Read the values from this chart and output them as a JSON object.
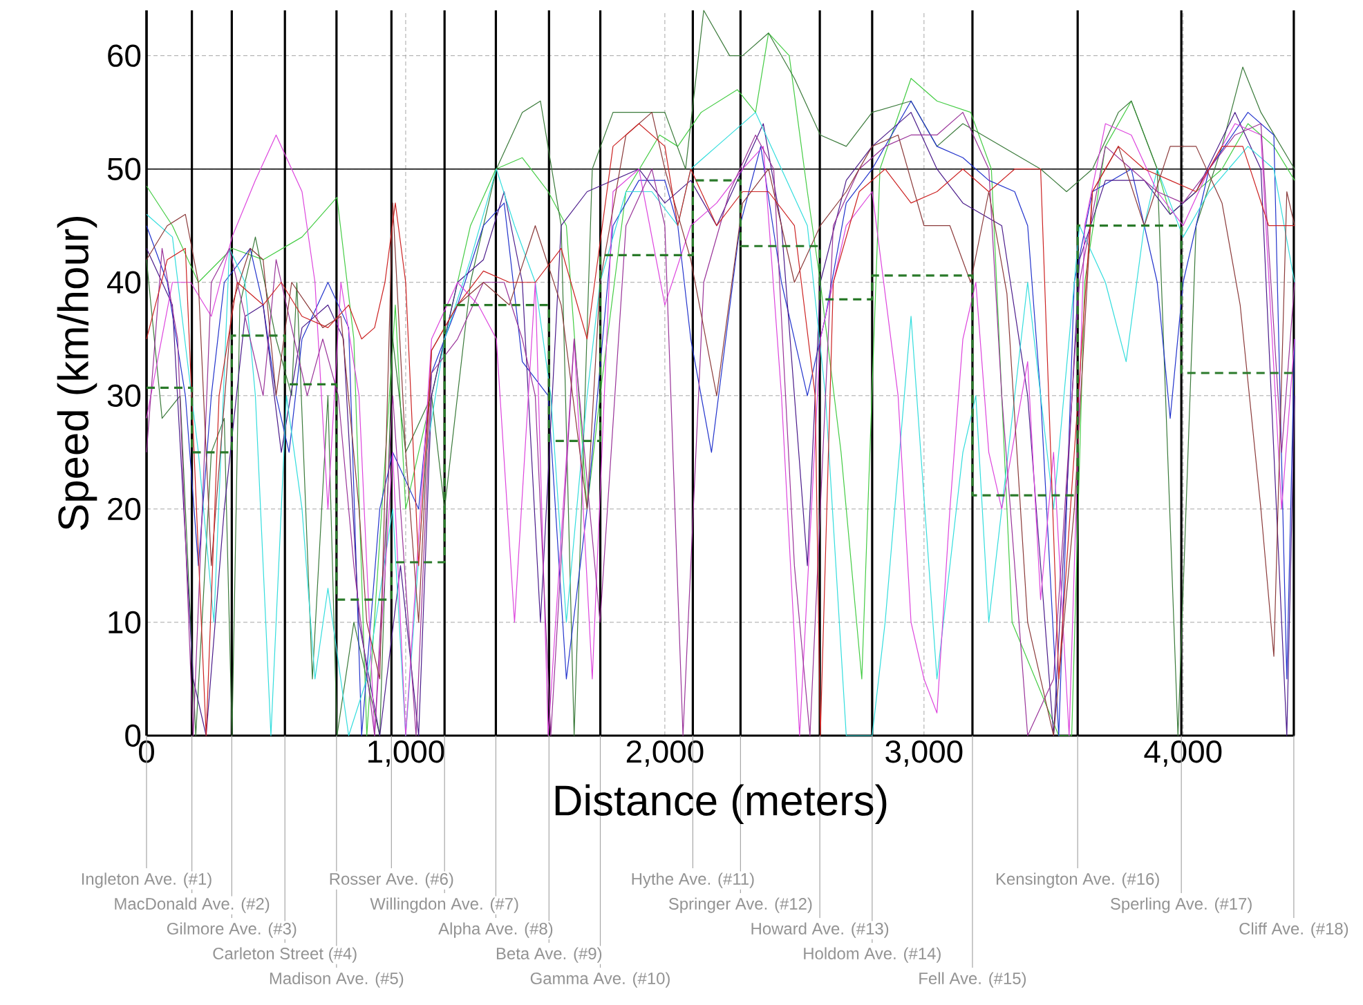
{
  "chart_data": {
    "type": "line",
    "xlabel": "Distance (meters)",
    "ylabel": "Speed (km/hour)",
    "xlim": [
      0,
      4430
    ],
    "ylim": [
      0,
      64
    ],
    "xticks": [
      0,
      {
        "value": 1000,
        "label": "1,000"
      },
      {
        "value": 2000,
        "label": "2,000"
      },
      {
        "value": 3000,
        "label": "3,000"
      },
      {
        "value": 4000,
        "label": "4,000"
      }
    ],
    "yticks": [
      0,
      10,
      20,
      30,
      40,
      50,
      60
    ],
    "grid": true,
    "marker": "none",
    "line_style": "solid",
    "series": [
      {
        "color": "#44cc44",
        "x": [
          0,
          100,
          200,
          330,
          450,
          600,
          735,
          800,
          850,
          960,
          1000,
          1150,
          1250,
          1348,
          1450,
          1550,
          1620,
          1700,
          1750,
          1850,
          1980,
          2050,
          2140,
          2280,
          2350,
          2400,
          2480,
          2550,
          2600,
          2680,
          2760,
          2830,
          2950,
          3050,
          3180,
          3260,
          3340,
          3520,
          3570,
          3620,
          3700,
          3800,
          3900,
          3950,
          4000,
          4150,
          4250,
          4350,
          4430
        ],
        "values": [
          48.5,
          45,
          40,
          43,
          42,
          44,
          47.5,
          35,
          0,
          38,
          20,
          35,
          45,
          50,
          51,
          48,
          45,
          20,
          30,
          48,
          53,
          52,
          55,
          57,
          55,
          62,
          60,
          48,
          40,
          25,
          5,
          50,
          58,
          56,
          55,
          50,
          10,
          0,
          0,
          40,
          52,
          56,
          50,
          46,
          47,
          50,
          54,
          52,
          49
        ]
      },
      {
        "color": "#3a7a3a",
        "x": [
          0,
          60,
          130,
          190,
          250,
          300,
          330,
          360,
          420,
          500,
          560,
          580,
          640,
          700,
          735,
          800,
          900,
          950,
          1000,
          1100,
          1150,
          1250,
          1350,
          1450,
          1520,
          1600,
          1650,
          1720,
          1800,
          1900,
          2000,
          2080,
          2150,
          2250,
          2300,
          2400,
          2500,
          2600,
          2700,
          2800,
          2950,
          3050,
          3150,
          3300,
          3450,
          3550,
          3650,
          3750,
          3800,
          3900,
          3980,
          4050,
          4150,
          4230,
          4300,
          4430
        ],
        "values": [
          42,
          28,
          30,
          0,
          25,
          28,
          0,
          38,
          44,
          35,
          30,
          40,
          5,
          30,
          0,
          10,
          0,
          35,
          25,
          30,
          20,
          40,
          50,
          55,
          56,
          45,
          0,
          50,
          55,
          55,
          55,
          50,
          64,
          60,
          60,
          62,
          58,
          53,
          52,
          55,
          56,
          52,
          54,
          52,
          50,
          48,
          50,
          55,
          56,
          50,
          0,
          45,
          52,
          59,
          55,
          50
        ]
      },
      {
        "color": "#2233cc",
        "x": [
          0,
          80,
          150,
          200,
          250,
          300,
          400,
          450,
          500,
          550,
          600,
          700,
          780,
          830,
          900,
          950,
          1050,
          1100,
          1200,
          1300,
          1380,
          1450,
          1550,
          1620,
          1700,
          1800,
          1900,
          2000,
          2050,
          2100,
          2180,
          2290,
          2370,
          2450,
          2550,
          2620,
          2700,
          2800,
          2950,
          3050,
          3150,
          3250,
          3350,
          3400,
          3450,
          3520,
          3580,
          3650,
          3800,
          3900,
          3950,
          4000,
          4100,
          4250,
          4350,
          4400,
          4430
        ],
        "values": [
          45,
          40,
          30,
          15,
          30,
          40,
          43,
          38,
          30,
          25,
          35,
          40,
          36,
          0,
          20,
          25,
          20,
          32,
          38,
          45,
          47,
          33,
          30,
          5,
          20,
          45,
          49,
          49,
          45,
          35,
          25,
          45,
          52,
          40,
          30,
          37,
          47,
          50,
          56,
          52,
          51,
          49,
          48,
          45,
          30,
          0,
          40,
          48,
          50,
          40,
          28,
          40,
          50,
          55,
          53,
          5,
          35
        ]
      },
      {
        "color": "#4a1a8a",
        "x": [
          0,
          100,
          180,
          230,
          300,
          380,
          450,
          520,
          600,
          700,
          760,
          820,
          900,
          980,
          1050,
          1100,
          1200,
          1300,
          1380,
          1450,
          1520,
          1600,
          1700,
          1800,
          1900,
          2000,
          2100,
          2200,
          2300,
          2380,
          2450,
          2550,
          2600,
          2700,
          2800,
          2950,
          3050,
          3150,
          3300,
          3400,
          3500,
          3600,
          3700,
          3850,
          3950,
          4050,
          4200,
          4300,
          4400,
          4430
        ],
        "values": [
          43,
          38,
          5,
          0,
          20,
          37,
          38,
          25,
          36,
          38,
          35,
          10,
          0,
          15,
          0,
          30,
          40,
          42,
          48,
          40,
          10,
          45,
          48,
          49,
          50,
          47,
          49,
          45,
          50,
          54,
          45,
          15,
          40,
          49,
          52,
          55,
          50,
          47,
          45,
          30,
          0,
          42,
          49,
          49,
          46,
          48,
          55,
          50,
          0,
          30
        ]
      },
      {
        "color": "#33dddd",
        "x": [
          0,
          100,
          200,
          260,
          320,
          380,
          420,
          480,
          540,
          600,
          650,
          700,
          780,
          850,
          950,
          1000,
          1080,
          1150,
          1250,
          1350,
          1420,
          1500,
          1560,
          1620,
          1700,
          1750,
          1850,
          1950,
          2050,
          2100,
          2200,
          2350,
          2450,
          2550,
          2620,
          2700,
          2800,
          2850,
          2950,
          3050,
          3150,
          3200,
          3250,
          3300,
          3400,
          3500,
          3600,
          3700,
          3780,
          3850,
          3900,
          4000,
          4100,
          4250,
          4350,
          4430
        ],
        "values": [
          46,
          44,
          25,
          10,
          43,
          40,
          30,
          0,
          30,
          20,
          5,
          13,
          0,
          5,
          20,
          0,
          25,
          35,
          42,
          50,
          45,
          40,
          30,
          10,
          30,
          40,
          48,
          48,
          45,
          50,
          52,
          55,
          50,
          45,
          30,
          0,
          0,
          10,
          37,
          5,
          25,
          30,
          10,
          20,
          40,
          20,
          45,
          40,
          33,
          45,
          50,
          44,
          48,
          52,
          50,
          40
        ]
      },
      {
        "color": "#dd44dd",
        "x": [
          0,
          100,
          170,
          250,
          330,
          420,
          500,
          600,
          650,
          700,
          750,
          820,
          880,
          950,
          1000,
          1100,
          1200,
          1280,
          1350,
          1420,
          1500,
          1550,
          1650,
          1720,
          1800,
          1900,
          2000,
          2100,
          2200,
          2300,
          2380,
          2450,
          2520,
          2600,
          2700,
          2800,
          2900,
          2950,
          3000,
          3050,
          3100,
          3150,
          3200,
          3250,
          3300,
          3400,
          3450,
          3500,
          3560,
          3620,
          3700,
          3800,
          3900,
          4000,
          4100,
          4200,
          4300,
          4380,
          4430
        ],
        "values": [
          28,
          40,
          40,
          37,
          44,
          49,
          53,
          48,
          40,
          20,
          40,
          30,
          0,
          25,
          0,
          35,
          40,
          38,
          35,
          10,
          40,
          0,
          35,
          5,
          48,
          50,
          38,
          45,
          47,
          50,
          52,
          30,
          0,
          35,
          45,
          48,
          30,
          10,
          5,
          2,
          20,
          35,
          40,
          25,
          20,
          33,
          12,
          25,
          0,
          45,
          54,
          53,
          48,
          45,
          50,
          54,
          53,
          20,
          35
        ]
      },
      {
        "color": "#993399",
        "x": [
          0,
          60,
          120,
          180,
          250,
          320,
          400,
          450,
          500,
          560,
          620,
          680,
          740,
          800,
          880,
          950,
          1040,
          1100,
          1200,
          1300,
          1380,
          1450,
          1500,
          1560,
          1650,
          1750,
          1850,
          1950,
          2000,
          2070,
          2150,
          2250,
          2350,
          2420,
          2500,
          2560,
          2650,
          2750,
          2850,
          2950,
          3050,
          3150,
          3250,
          3300,
          3400,
          3500,
          3600,
          3700,
          3800,
          3900,
          4000,
          4100,
          4200,
          4300,
          4380,
          4430
        ],
        "values": [
          25,
          43,
          35,
          0,
          40,
          43,
          35,
          30,
          42,
          36,
          30,
          35,
          30,
          15,
          0,
          30,
          0,
          32,
          35,
          40,
          40,
          35,
          30,
          0,
          35,
          10,
          45,
          50,
          45,
          0,
          40,
          48,
          53,
          50,
          15,
          0,
          45,
          50,
          52,
          53,
          53,
          55,
          50,
          30,
          0,
          5,
          40,
          52,
          50,
          48,
          47,
          50,
          53,
          54,
          25,
          40
        ]
      },
      {
        "color": "#8b3a3a",
        "x": [
          0,
          80,
          150,
          200,
          250,
          330,
          400,
          450,
          500,
          560,
          620,
          680,
          750,
          820,
          850,
          900,
          950,
          1000,
          1050,
          1100,
          1200,
          1300,
          1400,
          1500,
          1600,
          1700,
          1750,
          1850,
          1950,
          2000,
          2100,
          2200,
          2300,
          2400,
          2500,
          2600,
          2700,
          2800,
          2900,
          3000,
          3100,
          3180,
          3250,
          3320,
          3400,
          3500,
          3580,
          3650,
          3750,
          3850,
          3950,
          4050,
          4150,
          4220,
          4300,
          4350,
          4400,
          4430
        ],
        "values": [
          42,
          45,
          46,
          40,
          15,
          38,
          43,
          42,
          30,
          40,
          38,
          36,
          37,
          20,
          10,
          5,
          47,
          25,
          10,
          34,
          38,
          40,
          38,
          45,
          38,
          20,
          40,
          53,
          55,
          50,
          42,
          30,
          47,
          50,
          40,
          45,
          48,
          52,
          53,
          45,
          45,
          40,
          48,
          39,
          10,
          0,
          20,
          48,
          52,
          45,
          52,
          52,
          47,
          38,
          20,
          7,
          48,
          45
        ]
      },
      {
        "color": "#cc2222",
        "x": [
          0,
          80,
          150,
          230,
          280,
          350,
          450,
          520,
          600,
          700,
          780,
          830,
          880,
          920,
          960,
          1000,
          1050,
          1100,
          1200,
          1300,
          1400,
          1500,
          1600,
          1700,
          1800,
          1900,
          2000,
          2050,
          2100,
          2200,
          2300,
          2400,
          2500,
          2580,
          2600,
          2650,
          2750,
          2850,
          2950,
          3050,
          3150,
          3250,
          3350,
          3450,
          3520,
          3580,
          3650,
          3750,
          3850,
          3950,
          4050,
          4150,
          4230,
          4330,
          4430
        ],
        "values": [
          35,
          42,
          43,
          0,
          30,
          40,
          38,
          40,
          37,
          36,
          38,
          35,
          36,
          40,
          47,
          40,
          15,
          34,
          38,
          41,
          40,
          40,
          43,
          35,
          52,
          54,
          52,
          45,
          50,
          45,
          48,
          48,
          45,
          30,
          0,
          40,
          48,
          50,
          47,
          48,
          50,
          48,
          50,
          50,
          5,
          25,
          48,
          52,
          50,
          49,
          48,
          52,
          52,
          45,
          45
        ]
      },
      {
        "type": "step",
        "color": "#2a7a2a",
        "line_style": "dashed",
        "x": [
          0,
          175,
          329,
          534,
          733,
          945,
          1150,
          1348,
          1553,
          1751,
          2108,
          2292,
          2598,
          2800,
          3187,
          3593,
          3993,
          4427
        ],
        "values": [
          30.7,
          25,
          35.3,
          31,
          12,
          15.3,
          38,
          38,
          26,
          42.4,
          49,
          43.2,
          38.5,
          40.6,
          21.2,
          45,
          32,
          32
        ]
      }
    ],
    "ref_lines": [
      {
        "axis": "y",
        "value": 50,
        "color": "#000000"
      },
      {
        "axis": "x",
        "value": 0,
        "label": "Ingleton Ave. (#1)",
        "color": "#000000"
      },
      {
        "axis": "x",
        "value": 175,
        "label": "MacDonald Ave. (#2)",
        "color": "#000000"
      },
      {
        "axis": "x",
        "value": 329,
        "label": "Gilmore Ave. (#3)",
        "color": "#000000"
      },
      {
        "axis": "x",
        "value": 534,
        "label": "Carleton Street (#4)",
        "color": "#000000"
      },
      {
        "axis": "x",
        "value": 733,
        "label": "Madison Ave. (#5)",
        "color": "#000000"
      },
      {
        "axis": "x",
        "value": 945,
        "label": "Rosser Ave. (#6)",
        "color": "#000000"
      },
      {
        "axis": "x",
        "value": 1150,
        "label": "Willingdon Ave. (#7)",
        "color": "#000000"
      },
      {
        "axis": "x",
        "value": 1348,
        "label": "Alpha Ave. (#8)",
        "color": "#000000"
      },
      {
        "axis": "x",
        "value": 1553,
        "label": "Beta Ave. (#9)",
        "color": "#000000"
      },
      {
        "axis": "x",
        "value": 1751,
        "label": "Gamma Ave. (#10)",
        "color": "#000000"
      },
      {
        "axis": "x",
        "value": 2108,
        "label": "Hythe Ave. (#11)",
        "color": "#000000"
      },
      {
        "axis": "x",
        "value": 2292,
        "label": "Springer Ave. (#12)",
        "color": "#000000"
      },
      {
        "axis": "x",
        "value": 2598,
        "label": "Howard Ave. (#13)",
        "color": "#000000"
      },
      {
        "axis": "x",
        "value": 2800,
        "label": "Holdom Ave. (#14)",
        "color": "#000000"
      },
      {
        "axis": "x",
        "value": 3187,
        "label": "Fell Ave. (#15)",
        "color": "#000000"
      },
      {
        "axis": "x",
        "value": 3593,
        "label": "Kensington Ave. (#16)",
        "color": "#000000"
      },
      {
        "axis": "x",
        "value": 3993,
        "label": "Sperling Ave. (#17)",
        "color": "#000000"
      },
      {
        "axis": "x",
        "value": 4427,
        "label": "Cliff Ave. (#18)",
        "color": "#000000"
      }
    ]
  }
}
